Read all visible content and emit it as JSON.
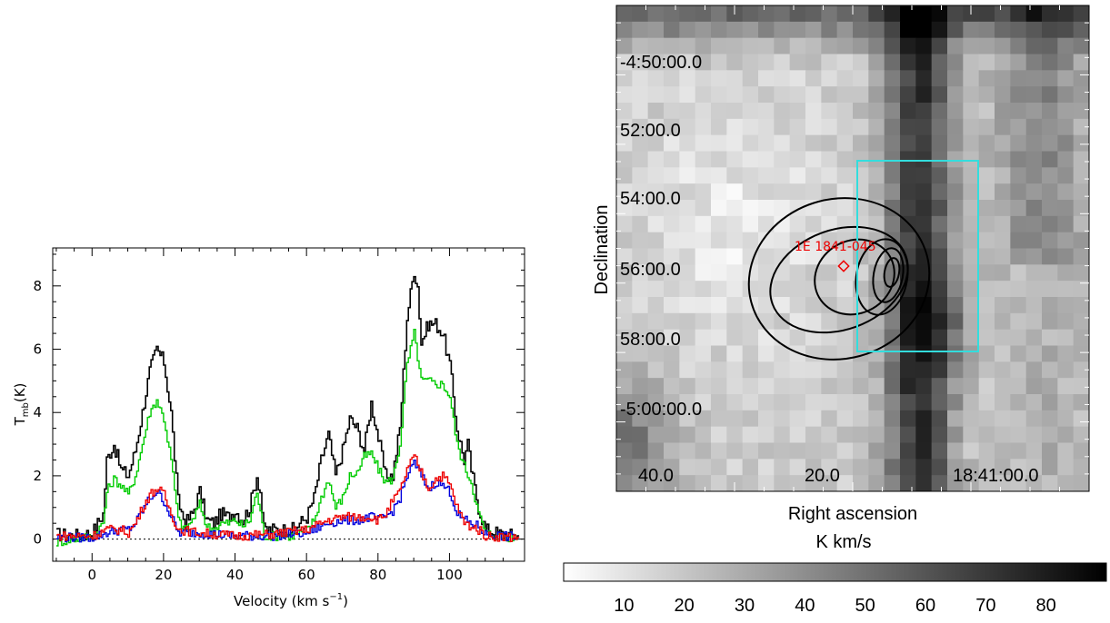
{
  "chart_data": [
    {
      "type": "line",
      "xlabel": "Velocity (km s",
      "xlabel_sup": "−1",
      "xlabel_end": ")",
      "ylabel": "T",
      "ylabel_sub": "mb",
      "ylabel_end": "(K)",
      "xlim": [
        -11,
        121
      ],
      "ylim": [
        -0.7,
        9.2
      ],
      "x_ticks": [
        0,
        20,
        40,
        60,
        80,
        100
      ],
      "y_ticks": [
        0,
        2,
        4,
        6,
        8
      ],
      "zero_line": "dotted",
      "series": [
        {
          "color": "#000000",
          "points": [
            [
              -10,
              0.15
            ],
            [
              -5,
              0.1
            ],
            [
              0,
              0.2
            ],
            [
              3,
              0.8
            ],
            [
              4,
              2.5
            ],
            [
              6,
              3.0
            ],
            [
              8,
              2.2
            ],
            [
              10,
              2.0
            ],
            [
              12,
              2.8
            ],
            [
              14,
              4.0
            ],
            [
              16,
              5.3
            ],
            [
              18,
              6.0
            ],
            [
              20,
              5.6
            ],
            [
              22,
              4.0
            ],
            [
              24,
              1.2
            ],
            [
              26,
              0.5
            ],
            [
              28,
              0.8
            ],
            [
              30,
              1.5
            ],
            [
              32,
              0.6
            ],
            [
              34,
              0.5
            ],
            [
              36,
              0.8
            ],
            [
              38,
              0.7
            ],
            [
              40,
              0.9
            ],
            [
              42,
              0.6
            ],
            [
              44,
              1.0
            ],
            [
              46,
              2.0
            ],
            [
              47,
              1.5
            ],
            [
              48,
              0.3
            ],
            [
              52,
              0.3
            ],
            [
              56,
              0.3
            ],
            [
              60,
              0.7
            ],
            [
              62,
              1.3
            ],
            [
              64,
              2.5
            ],
            [
              66,
              3.3
            ],
            [
              68,
              2.0
            ],
            [
              70,
              2.8
            ],
            [
              72,
              3.8
            ],
            [
              74,
              3.5
            ],
            [
              76,
              2.8
            ],
            [
              78,
              4.3
            ],
            [
              80,
              3.2
            ],
            [
              82,
              2.0
            ],
            [
              84,
              2.0
            ],
            [
              86,
              3.5
            ],
            [
              88,
              7.0
            ],
            [
              90,
              8.5
            ],
            [
              91,
              8.0
            ],
            [
              92,
              6.2
            ],
            [
              94,
              6.8
            ],
            [
              96,
              6.8
            ],
            [
              98,
              6.5
            ],
            [
              100,
              5.5
            ],
            [
              102,
              3.5
            ],
            [
              104,
              2.5
            ],
            [
              105,
              3.0
            ],
            [
              106,
              2.2
            ],
            [
              108,
              1.0
            ],
            [
              110,
              0.3
            ],
            [
              115,
              0.15
            ],
            [
              119,
              0.1
            ]
          ]
        },
        {
          "color": "#00cc00",
          "points": [
            [
              -10,
              -0.1
            ],
            [
              -5,
              0.0
            ],
            [
              0,
              0.1
            ],
            [
              3,
              0.5
            ],
            [
              4,
              1.5
            ],
            [
              6,
              1.9
            ],
            [
              8,
              1.7
            ],
            [
              10,
              1.4
            ],
            [
              12,
              2.0
            ],
            [
              14,
              3.0
            ],
            [
              16,
              4.0
            ],
            [
              18,
              4.4
            ],
            [
              20,
              3.8
            ],
            [
              22,
              2.5
            ],
            [
              24,
              0.6
            ],
            [
              26,
              0.3
            ],
            [
              28,
              0.6
            ],
            [
              30,
              1.1
            ],
            [
              32,
              0.4
            ],
            [
              34,
              0.3
            ],
            [
              36,
              0.5
            ],
            [
              38,
              0.5
            ],
            [
              40,
              0.6
            ],
            [
              42,
              0.4
            ],
            [
              44,
              0.6
            ],
            [
              46,
              1.5
            ],
            [
              48,
              0.1
            ],
            [
              52,
              0.1
            ],
            [
              56,
              0.1
            ],
            [
              60,
              0.3
            ],
            [
              62,
              0.6
            ],
            [
              64,
              1.3
            ],
            [
              66,
              1.9
            ],
            [
              68,
              1.0
            ],
            [
              70,
              1.3
            ],
            [
              72,
              2.0
            ],
            [
              74,
              2.1
            ],
            [
              76,
              2.6
            ],
            [
              78,
              2.7
            ],
            [
              80,
              2.2
            ],
            [
              82,
              1.8
            ],
            [
              84,
              1.9
            ],
            [
              86,
              3.0
            ],
            [
              88,
              5.5
            ],
            [
              90,
              6.5
            ],
            [
              92,
              5.0
            ],
            [
              94,
              5.0
            ],
            [
              96,
              4.9
            ],
            [
              98,
              4.9
            ],
            [
              100,
              4.5
            ],
            [
              102,
              3.0
            ],
            [
              104,
              2.3
            ],
            [
              106,
              1.8
            ],
            [
              108,
              0.8
            ],
            [
              110,
              0.2
            ],
            [
              115,
              0.05
            ],
            [
              119,
              0.05
            ]
          ]
        },
        {
          "color": "#0000dd",
          "points": [
            [
              -10,
              0.05
            ],
            [
              0,
              0.05
            ],
            [
              4,
              0.2
            ],
            [
              8,
              0.3
            ],
            [
              10,
              0.3
            ],
            [
              12,
              0.5
            ],
            [
              14,
              0.9
            ],
            [
              16,
              1.3
            ],
            [
              18,
              1.5
            ],
            [
              20,
              1.2
            ],
            [
              22,
              0.7
            ],
            [
              24,
              0.2
            ],
            [
              30,
              0.2
            ],
            [
              40,
              0.1
            ],
            [
              50,
              0.1
            ],
            [
              60,
              0.2
            ],
            [
              66,
              0.5
            ],
            [
              70,
              0.6
            ],
            [
              74,
              0.6
            ],
            [
              78,
              0.7
            ],
            [
              80,
              0.6
            ],
            [
              82,
              0.7
            ],
            [
              84,
              0.9
            ],
            [
              86,
              1.3
            ],
            [
              88,
              2.0
            ],
            [
              90,
              2.4
            ],
            [
              92,
              2.0
            ],
            [
              94,
              1.6
            ],
            [
              96,
              1.8
            ],
            [
              98,
              1.7
            ],
            [
              100,
              1.5
            ],
            [
              102,
              0.8
            ],
            [
              104,
              0.6
            ],
            [
              108,
              0.4
            ],
            [
              110,
              0.15
            ],
            [
              119,
              0.05
            ]
          ]
        },
        {
          "color": "#ee0000",
          "points": [
            [
              -10,
              0.1
            ],
            [
              0,
              0.1
            ],
            [
              4,
              0.3
            ],
            [
              8,
              0.3
            ],
            [
              10,
              0.2
            ],
            [
              12,
              0.5
            ],
            [
              14,
              1.0
            ],
            [
              16,
              1.4
            ],
            [
              18,
              1.6
            ],
            [
              20,
              1.4
            ],
            [
              22,
              0.8
            ],
            [
              24,
              0.3
            ],
            [
              30,
              0.2
            ],
            [
              40,
              0.1
            ],
            [
              50,
              0.15
            ],
            [
              60,
              0.3
            ],
            [
              66,
              0.6
            ],
            [
              70,
              0.7
            ],
            [
              74,
              0.7
            ],
            [
              78,
              0.7
            ],
            [
              80,
              0.6
            ],
            [
              82,
              0.8
            ],
            [
              84,
              1.2
            ],
            [
              86,
              1.5
            ],
            [
              88,
              2.2
            ],
            [
              90,
              2.6
            ],
            [
              92,
              2.1
            ],
            [
              94,
              1.6
            ],
            [
              96,
              1.9
            ],
            [
              98,
              2.0
            ],
            [
              100,
              1.7
            ],
            [
              102,
              1.0
            ],
            [
              104,
              0.5
            ],
            [
              106,
              0.4
            ],
            [
              108,
              0.3
            ],
            [
              110,
              0.1
            ],
            [
              119,
              0.05
            ]
          ]
        }
      ]
    },
    {
      "type": "heatmap",
      "xlabel": "Right ascension",
      "ylabel": "Declination",
      "colorbar_label": "K km/s",
      "colorbar_ticks": [
        10,
        20,
        30,
        40,
        50,
        60,
        70,
        80
      ],
      "colorbar_range": [
        0,
        90
      ],
      "colormap": "grayscale-inverted",
      "ra_tick_labels": [
        "40.0",
        "20.0",
        "18:41:00.0"
      ],
      "dec_tick_labels": [
        "-4:50:00.0",
        "52:00.0",
        "54:00.0",
        "56:00.0",
        "58:00.0",
        "-5:00:00.0"
      ],
      "source_label": "1E 1841-045",
      "source_color": "#ee0000",
      "box_color": "#33dddd",
      "contour_color": "#000000",
      "contour_count": 6
    }
  ]
}
